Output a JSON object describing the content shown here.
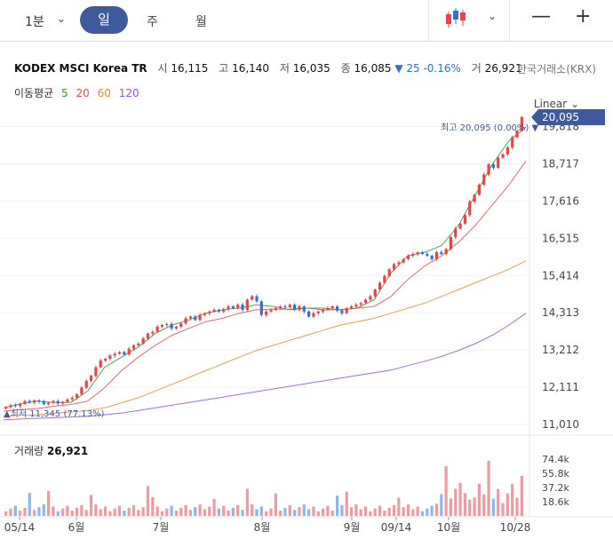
{
  "toolbar": {
    "interval": "1분",
    "periods": [
      "일",
      "주",
      "월"
    ],
    "active_period": "일",
    "minimize": "—",
    "add": "+"
  },
  "quote": {
    "name": "KODEX MSCI Korea TR",
    "open_label": "시",
    "open": "16,115",
    "high_label": "고",
    "high": "16,140",
    "low_label": "저",
    "low": "16,035",
    "close_label": "종",
    "close": "16,085",
    "change": "▼ 25 -0.16%",
    "volume_label": "거",
    "volume": "26,921",
    "exchange": "한국거래소(KRX)"
  },
  "moving_average": {
    "label": "이동평균",
    "periods": [
      "5",
      "20",
      "60",
      "120"
    ],
    "colors": [
      "#2f9a2f",
      "#e94c4c",
      "#e98a2a",
      "#9b4fd6"
    ]
  },
  "scale_mode": "Linear",
  "colors": {
    "up": "#e8424a",
    "down": "#2f6fd6",
    "accent": "#3e5a9c"
  },
  "chart_data": {
    "type": "candlestick",
    "y_ticks": [
      "19,818",
      "18,717",
      "17,616",
      "16,515",
      "15,414",
      "14,313",
      "13,212",
      "12,111",
      "11,010"
    ],
    "ylim": [
      11010,
      20200
    ],
    "x_ticks": [
      "05/14",
      "6월",
      "7월",
      "8월",
      "9월",
      "09/14",
      "10월",
      "10/28"
    ],
    "current_price": "20,095",
    "high_annotation": "최고 20,095 (0.00%)",
    "low_annotation": "최저 11,345 (77.13%)",
    "closes": [
      11520,
      11580,
      11560,
      11620,
      11700,
      11660,
      11720,
      11690,
      11610,
      11650,
      11700,
      11630,
      11680,
      11750,
      11800,
      11900,
      12100,
      12300,
      12450,
      12700,
      12900,
      12950,
      13050,
      13100,
      13150,
      13080,
      13250,
      13350,
      13400,
      13550,
      13700,
      13750,
      13900,
      13950,
      13980,
      13850,
      13900,
      14000,
      14150,
      14200,
      14100,
      14250,
      14300,
      14350,
      14400,
      14350,
      14420,
      14500,
      14450,
      14550,
      14400,
      14700,
      14800,
      14650,
      14250,
      14350,
      14400,
      14450,
      14500,
      14480,
      14550,
      14400,
      14500,
      14350,
      14200,
      14300,
      14350,
      14400,
      14450,
      14500,
      14380,
      14300,
      14450,
      14500,
      14550,
      14600,
      14700,
      14800,
      15000,
      15200,
      15400,
      15600,
      15750,
      15800,
      15900,
      16000,
      16050,
      16100,
      16050,
      16000,
      15900,
      16100,
      16050,
      16200,
      16550,
      16800,
      16950,
      17200,
      17600,
      17800,
      18100,
      18400,
      18700,
      18600,
      18900,
      19000,
      19200,
      19500,
      19700,
      20095
    ],
    "ma_series": [
      {
        "name": "5",
        "values": [
          11500,
          11620,
          11700,
          11660,
          11660,
          12000,
          12700,
          13000,
          13300,
          13700,
          13950,
          14100,
          14300,
          14400,
          14450,
          14550,
          14500,
          14400,
          14450,
          14450,
          14400,
          14450,
          14700,
          15500,
          16000,
          16100,
          16300,
          16900,
          17800,
          18700,
          19400,
          19800
        ]
      },
      {
        "name": "20",
        "values": [
          11400,
          11450,
          11480,
          11550,
          11600,
          11700,
          12100,
          12600,
          13000,
          13350,
          13650,
          13850,
          14050,
          14150,
          14300,
          14400,
          14420,
          14420,
          14450,
          14400,
          14400,
          14450,
          14500,
          14800,
          15300,
          15700,
          16000,
          16400,
          16900,
          17500,
          18100,
          18800
        ]
      },
      {
        "name": "60",
        "values": [
          11250,
          11280,
          11300,
          11340,
          11380,
          11420,
          11500,
          11650,
          11800,
          12000,
          12200,
          12400,
          12600,
          12800,
          13000,
          13200,
          13350,
          13500,
          13650,
          13800,
          13950,
          14050,
          14150,
          14300,
          14450,
          14600,
          14800,
          15000,
          15200,
          15400,
          15600,
          15850
        ]
      },
      {
        "name": "120",
        "values": [
          11150,
          11170,
          11190,
          11210,
          11230,
          11250,
          11300,
          11350,
          11420,
          11500,
          11580,
          11660,
          11740,
          11820,
          11900,
          11980,
          12060,
          12140,
          12220,
          12300,
          12380,
          12460,
          12540,
          12620,
          12750,
          12880,
          13020,
          13200,
          13400,
          13650,
          13950,
          14300
        ]
      }
    ],
    "volume_ticks": [
      "74.4k",
      "55.8k",
      "37.2k",
      "18.6k"
    ],
    "volume_max": 80000
  },
  "volume_panel": {
    "label": "거래량",
    "value": "26,921"
  }
}
